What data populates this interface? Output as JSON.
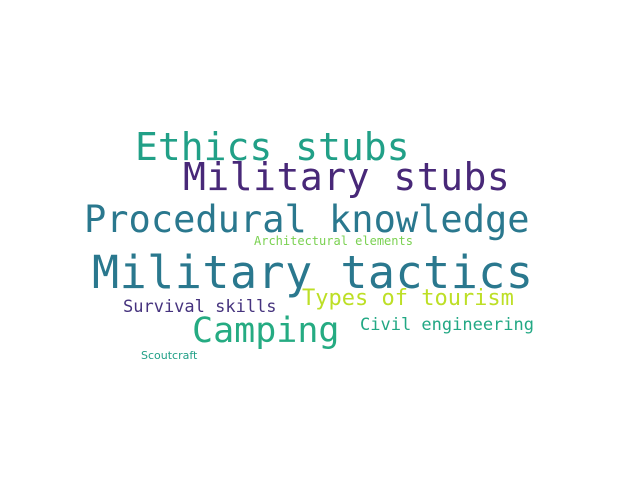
{
  "words": [
    {
      "id": "ethics",
      "text": "Ethics stubs",
      "color": "#21a087"
    },
    {
      "id": "military_stubs",
      "text": "Military stubs",
      "color": "#482878"
    },
    {
      "id": "procedural",
      "text": "Procedural knowledge",
      "color": "#2a788e"
    },
    {
      "id": "architectural",
      "text": "Architectural elements",
      "color": "#7ad151"
    },
    {
      "id": "tactics",
      "text": "Military tactics",
      "color": "#2a788e"
    },
    {
      "id": "tourism",
      "text": "Types of tourism",
      "color": "#bddf26"
    },
    {
      "id": "survival",
      "text": "Survival skills",
      "color": "#46337e"
    },
    {
      "id": "camping",
      "text": "Camping",
      "color": "#25ab82"
    },
    {
      "id": "civil",
      "text": "Civil engineering",
      "color": "#22a884"
    },
    {
      "id": "scoutcraft",
      "text": "Scoutcraft",
      "color": "#21a087"
    }
  ]
}
